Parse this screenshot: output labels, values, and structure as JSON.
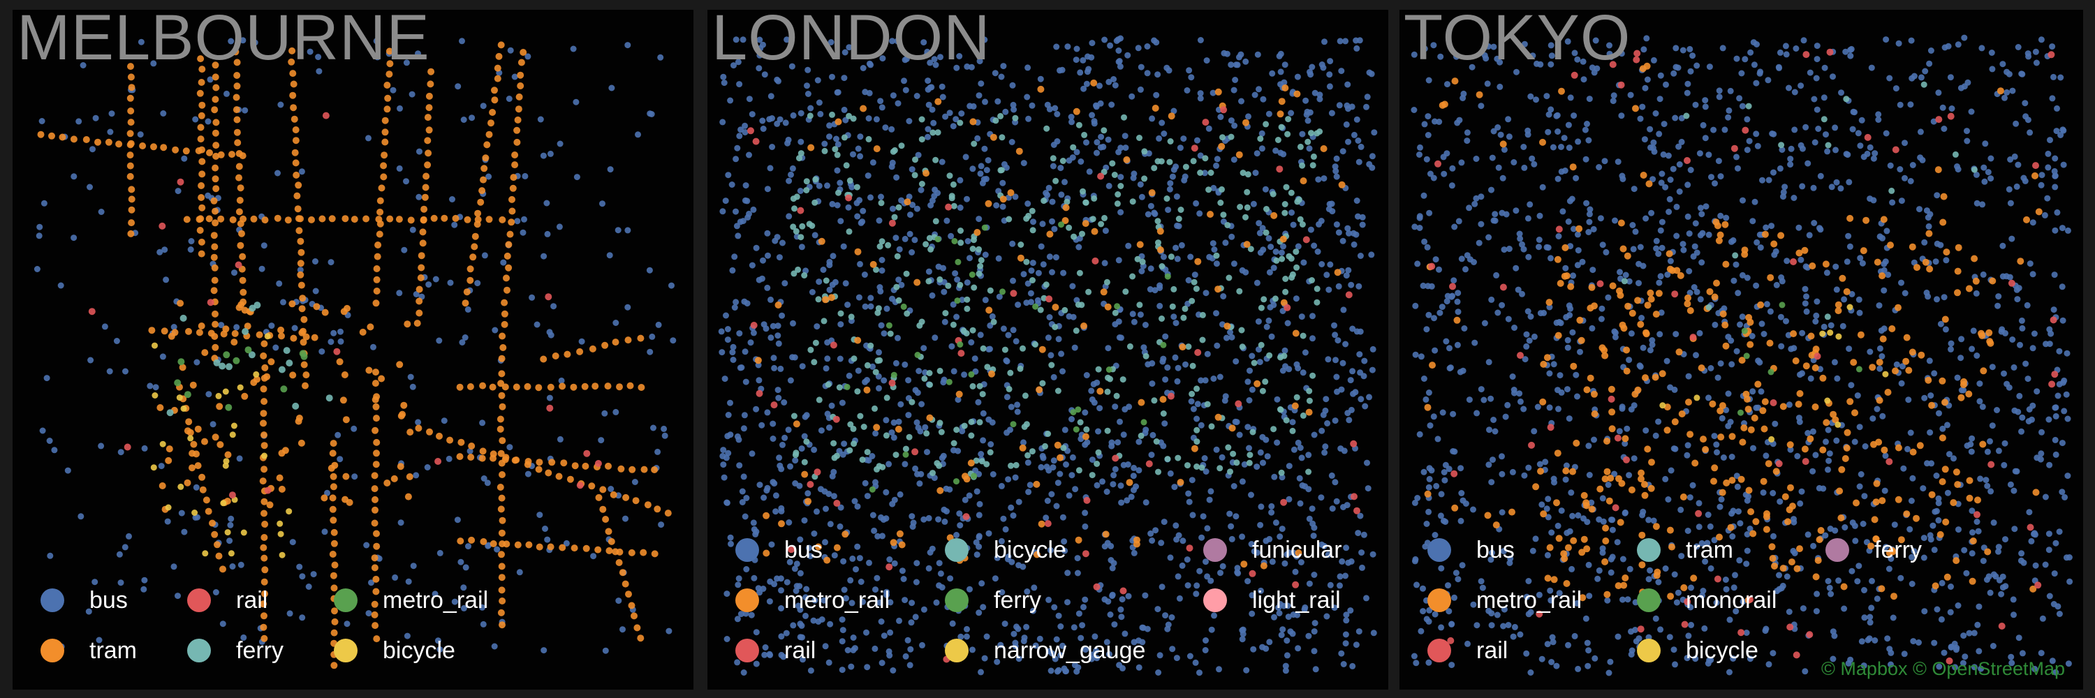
{
  "panels": [
    {
      "title": "MELBOURNE",
      "legend": [
        {
          "label": "bus",
          "color": "#4c72b0"
        },
        {
          "label": "tram",
          "color": "#f28e2b"
        },
        {
          "label": "rail",
          "color": "#e15759"
        },
        {
          "label": "ferry",
          "color": "#76b7b2"
        },
        {
          "label": "metro_rail",
          "color": "#59a14f"
        },
        {
          "label": "bicycle",
          "color": "#edc948"
        }
      ]
    },
    {
      "title": "LONDON",
      "legend": [
        {
          "label": "bus",
          "color": "#4c72b0"
        },
        {
          "label": "metro_rail",
          "color": "#f28e2b"
        },
        {
          "label": "rail",
          "color": "#e15759"
        },
        {
          "label": "bicycle",
          "color": "#76b7b2"
        },
        {
          "label": "ferry",
          "color": "#59a14f"
        },
        {
          "label": "narrow_gauge",
          "color": "#edc948"
        },
        {
          "label": "funicular",
          "color": "#b07aa1"
        },
        {
          "label": "light_rail",
          "color": "#ff9da7"
        }
      ]
    },
    {
      "title": "TOKYO",
      "legend": [
        {
          "label": "bus",
          "color": "#4c72b0"
        },
        {
          "label": "metro_rail",
          "color": "#f28e2b"
        },
        {
          "label": "rail",
          "color": "#e15759"
        },
        {
          "label": "tram",
          "color": "#76b7b2"
        },
        {
          "label": "monorail",
          "color": "#59a14f"
        },
        {
          "label": "bicycle",
          "color": "#edc948"
        },
        {
          "label": "ferry",
          "color": "#b07aa1"
        }
      ]
    }
  ],
  "attribution": "© Mapbox © OpenStreetMap"
}
